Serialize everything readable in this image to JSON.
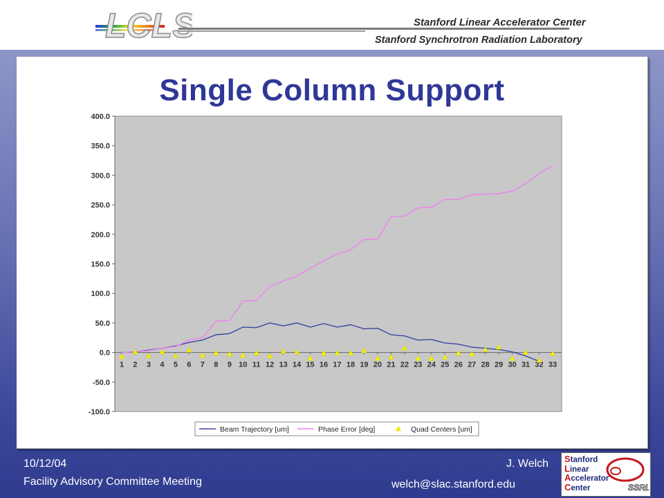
{
  "header": {
    "logo_text": "LCLS",
    "line1": "Stanford Linear Accelerator Center",
    "line2": "Stanford Synchrotron Radiation Laboratory"
  },
  "slide": {
    "title": "Single Column Support"
  },
  "footer": {
    "date": "10/12/04",
    "meeting": "Facility Advisory Committee Meeting",
    "author": "J. Welch",
    "email": "welch@slac.stanford.edu",
    "logo_lines": [
      {
        "cap": "S",
        "rest": "tanford"
      },
      {
        "cap": "L",
        "rest": "inear"
      },
      {
        "cap": "A",
        "rest": "ccelerator"
      },
      {
        "cap": "C",
        "rest": "enter"
      }
    ],
    "logo_badge": "SSRL"
  },
  "colors": {
    "title": "#2f3797",
    "beam_trajectory": "#3a46a0",
    "phase_error": "#ee82ee",
    "quad_centers": "#f4f000",
    "plot_bg": "#c8c8c8",
    "frame": "#3d4a9c"
  },
  "chart_data": {
    "type": "line",
    "title": "",
    "xlabel": "",
    "ylabel": "",
    "ylim": [
      -100,
      400
    ],
    "yticks": [
      "400.0",
      "350.0",
      "300.0",
      "250.0",
      "200.0",
      "150.0",
      "100.0",
      "50.0",
      "0.0",
      "-50.0",
      "-100.0"
    ],
    "categories": [
      "1",
      "2",
      "3",
      "4",
      "5",
      "6",
      "7",
      "8",
      "9",
      "10",
      "11",
      "12",
      "13",
      "14",
      "15",
      "16",
      "17",
      "18",
      "19",
      "20",
      "21",
      "22",
      "23",
      "24",
      "25",
      "26",
      "27",
      "28",
      "29",
      "30",
      "31",
      "32",
      "33"
    ],
    "grid": false,
    "legend_position": "bottom",
    "series": [
      {
        "name": "Beam Trajectory [um]",
        "style": "line",
        "values": [
          0,
          1,
          4,
          7,
          11,
          17,
          21,
          30,
          32,
          43,
          42,
          50,
          45,
          50,
          43,
          49,
          43,
          47,
          40,
          41,
          30,
          28,
          21,
          22,
          16,
          14,
          9,
          7,
          5,
          1,
          -6,
          -15,
          null
        ]
      },
      {
        "name": "Phase Error [deg]",
        "style": "line",
        "values": [
          0,
          1,
          3,
          7,
          10,
          21,
          25,
          53,
          54,
          87,
          88,
          112,
          121,
          129,
          143,
          155,
          167,
          174,
          191,
          192,
          230,
          231,
          245,
          246,
          259,
          259,
          267,
          268,
          269,
          273,
          286,
          303,
          316
        ]
      },
      {
        "name": "Quad Centers [um]",
        "style": "marker-triangle",
        "values": [
          -7,
          1,
          -6,
          1,
          -6,
          4,
          -5,
          -1,
          -3,
          -5,
          -1,
          -6,
          2,
          1,
          -10,
          -1,
          -1,
          -1,
          3,
          -10,
          -8,
          7,
          -10,
          -10,
          -8,
          -1,
          -3,
          5,
          9,
          -10,
          0,
          -13,
          -2
        ]
      }
    ]
  }
}
